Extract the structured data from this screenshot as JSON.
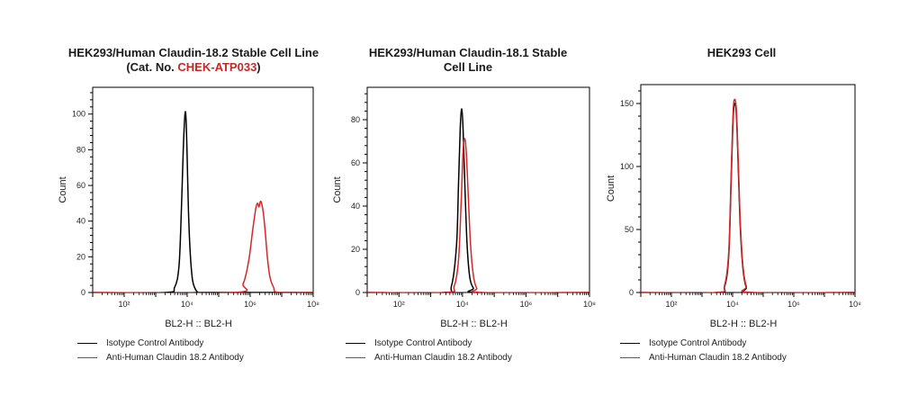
{
  "chart_data": [
    {
      "type": "line",
      "title_line1": "HEK293/Human Claudin-18.2 Stable Cell Line",
      "title_line2_prefix": "(Cat. No. ",
      "title_line2_catalog": "CHEK-ATP033",
      "title_line2_suffix": ")",
      "xlabel": "BL2-H :: BL2-H",
      "ylabel": "Count",
      "x_scale": "log",
      "xlim": [
        10,
        100000000
      ],
      "ylim": [
        0,
        115
      ],
      "yticks": [
        0,
        20,
        40,
        60,
        80,
        100
      ],
      "xtick_labels": [
        {
          "value": 100,
          "label": "10²"
        },
        {
          "value": 10000,
          "label": "10⁴"
        },
        {
          "value": 1000000,
          "label": "10⁶"
        },
        {
          "value": 100000000,
          "label": "10⁸"
        }
      ],
      "grid": false,
      "legend_position": "bottom",
      "series": [
        {
          "name": "Isotype Control Antibody",
          "color": "#000000",
          "x": [
            10,
            2000,
            4000,
            5500,
            6500,
            7500,
            8500,
            9200,
            10000,
            11000,
            12500,
            14500,
            17000,
            22000,
            30000,
            100000000
          ],
          "y": [
            0,
            0,
            3,
            15,
            45,
            80,
            100,
            97,
            75,
            45,
            22,
            8,
            3,
            0,
            0,
            0
          ]
        },
        {
          "name": "Anti-Human Claudin 18.2 Antibody",
          "color": "#d62728",
          "x": [
            10,
            300000,
            600000,
            900000,
            1200000,
            1500000,
            1700000,
            1900000,
            2100000,
            2300000,
            2600000,
            3000000,
            3500000,
            4200000,
            5500000,
            8000000,
            100000000
          ],
          "y": [
            0,
            0,
            5,
            18,
            35,
            47,
            50,
            48,
            51,
            50,
            45,
            34,
            20,
            9,
            3,
            0,
            0
          ]
        }
      ]
    },
    {
      "type": "line",
      "title_line1": "HEK293/Human Claudin-18.1 Stable",
      "title_line2": "Cell Line",
      "xlabel": "BL2-H :: BL2-H",
      "ylabel": "Count",
      "x_scale": "log",
      "xlim": [
        10,
        100000000
      ],
      "ylim": [
        0,
        95
      ],
      "yticks": [
        0,
        20,
        40,
        60,
        80
      ],
      "xtick_labels": [
        {
          "value": 100,
          "label": "10²"
        },
        {
          "value": 10000,
          "label": "10⁴"
        },
        {
          "value": 1000000,
          "label": "10⁶"
        },
        {
          "value": 100000000,
          "label": "10⁸"
        }
      ],
      "grid": false,
      "legend_position": "bottom",
      "series": [
        {
          "name": "Isotype Control Antibody",
          "color": "#000000",
          "x": [
            10,
            2500,
            4500,
            6500,
            7500,
            8500,
            9500,
            10500,
            12000,
            14000,
            17000,
            22000,
            30000,
            100000000
          ],
          "y": [
            0,
            0,
            3,
            22,
            50,
            76,
            85,
            75,
            48,
            22,
            7,
            2,
            0,
            0
          ]
        },
        {
          "name": "Anti-Human Claudin 18.2 Antibody",
          "color": "#d62728",
          "x": [
            10,
            3000,
            5500,
            7500,
            9000,
            10500,
            12000,
            13500,
            15500,
            18000,
            22000,
            28000,
            40000,
            100000000
          ],
          "y": [
            0,
            0,
            3,
            15,
            40,
            66,
            71,
            62,
            42,
            22,
            8,
            2,
            0,
            0
          ]
        }
      ]
    },
    {
      "type": "line",
      "title_line1": "HEK293 Cell",
      "xlabel": "BL2-H :: BL2-H",
      "ylabel": "Count",
      "x_scale": "log",
      "xlim": [
        10,
        100000000
      ],
      "ylim": [
        0,
        165
      ],
      "yticks": [
        0,
        50,
        100,
        150
      ],
      "xtick_labels": [
        {
          "value": 100,
          "label": "10²"
        },
        {
          "value": 10000,
          "label": "10⁴"
        },
        {
          "value": 1000000,
          "label": "10⁶"
        },
        {
          "value": 100000000,
          "label": "10⁸"
        }
      ],
      "grid": false,
      "legend_position": "bottom",
      "series": [
        {
          "name": "Isotype Control Antibody",
          "color": "#000000",
          "x": [
            10,
            3000,
            5500,
            7500,
            9000,
            10500,
            12000,
            13500,
            15500,
            18000,
            22000,
            28000,
            40000,
            100000000
          ],
          "y": [
            0,
            0,
            5,
            30,
            90,
            140,
            150,
            138,
            95,
            50,
            18,
            4,
            0,
            0
          ]
        },
        {
          "name": "Anti-Human Claudin 18.2 Antibody",
          "color": "#d62728",
          "x": [
            10,
            3000,
            5500,
            7500,
            9000,
            10500,
            12000,
            13500,
            15500,
            18000,
            22000,
            28000,
            40000,
            100000000
          ],
          "y": [
            0,
            0,
            6,
            33,
            95,
            145,
            153,
            142,
            100,
            54,
            20,
            5,
            0,
            0
          ]
        }
      ]
    }
  ]
}
